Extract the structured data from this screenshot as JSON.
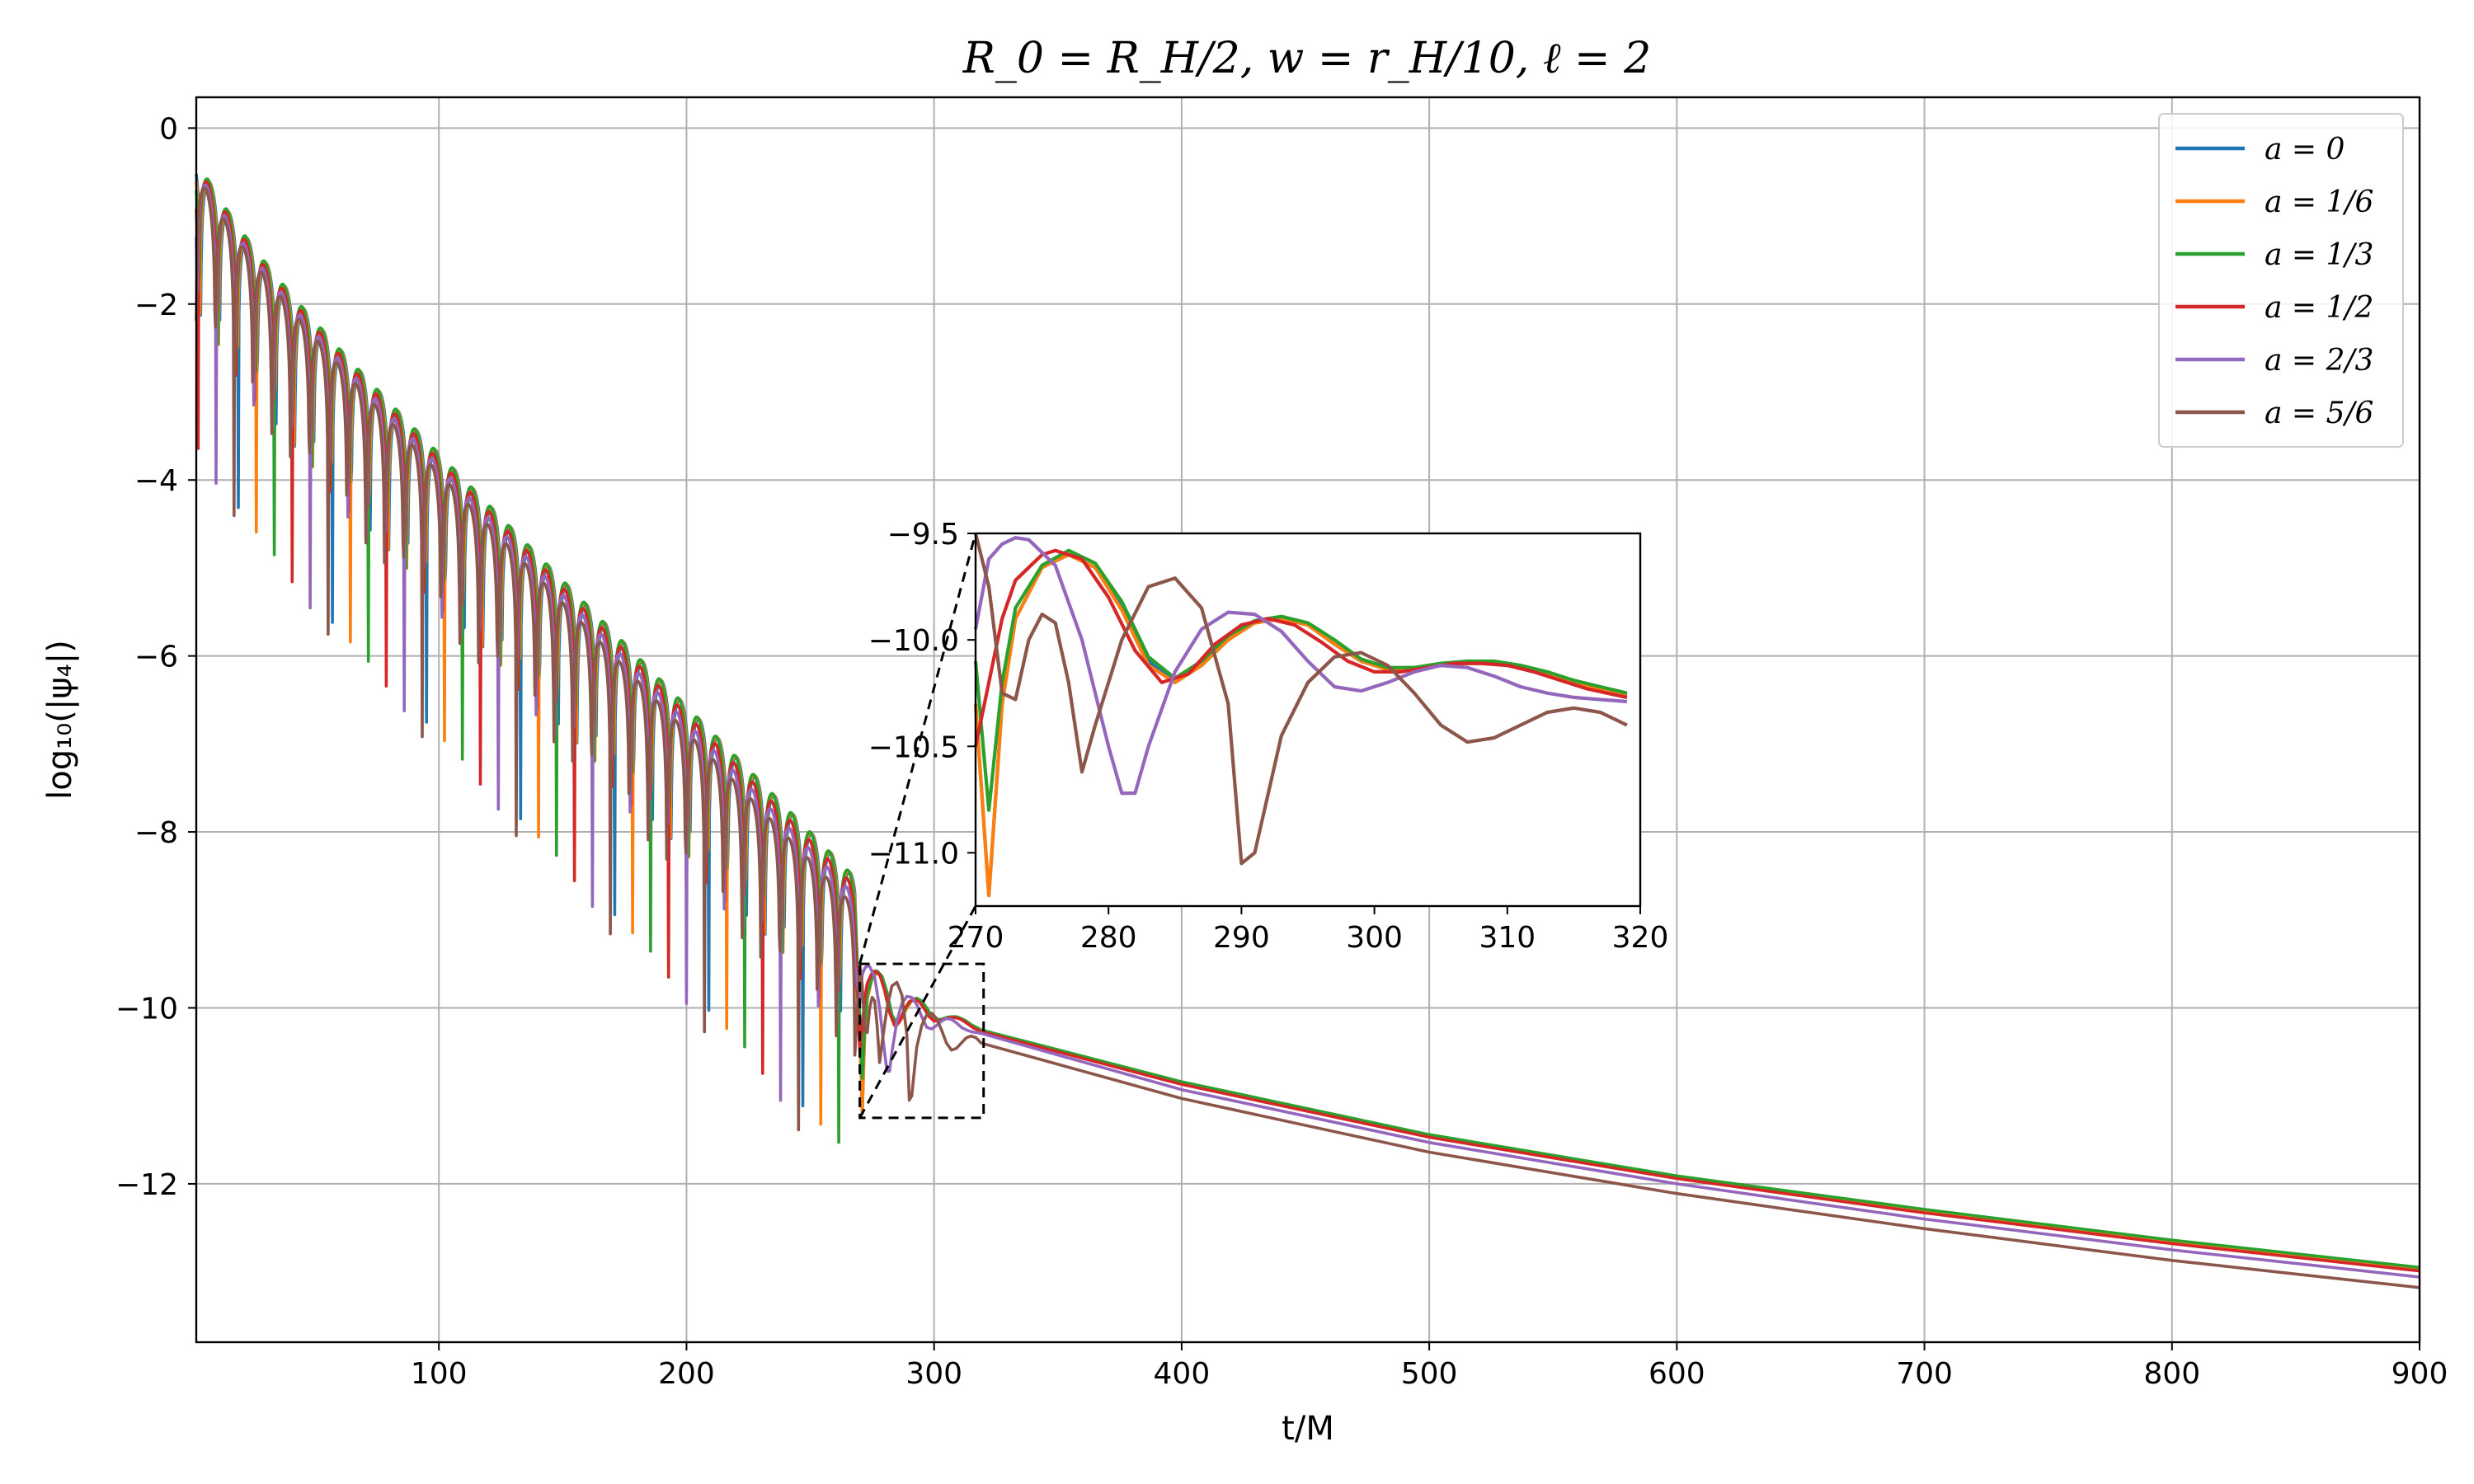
{
  "chart_data": [
    {
      "type": "line",
      "title": "R_0 = R_H/2, w = r_H/10, ℓ = 2",
      "xlabel": "t/M",
      "ylabel": "log₁₀(|ψ₄|)",
      "xlim": [
        2,
        900
      ],
      "ylim": [
        -13.8,
        0.35
      ],
      "xticks": [
        100,
        200,
        300,
        400,
        500,
        600,
        700,
        800,
        900
      ],
      "yticks": [
        0,
        -2,
        -4,
        -6,
        -8,
        -10,
        -12
      ],
      "xtick_labels": [
        "100",
        "200",
        "300",
        "400",
        "500",
        "600",
        "700",
        "800",
        "900"
      ],
      "ytick_labels": [
        "0",
        "−2",
        "−4",
        "−6",
        "−8",
        "−10",
        "−12"
      ],
      "grid": true,
      "legend_position": "top-right",
      "series": [
        {
          "name": "a = 0",
          "color": "#1f77b4",
          "ringdown_slope": -0.0286,
          "ringdown_offset": -0.85,
          "tail": [
            [
              320,
              -10.15
            ],
            [
              400,
              -10.85
            ],
            [
              500,
              -11.45
            ],
            [
              600,
              -11.92
            ],
            [
              700,
              -12.3
            ],
            [
              800,
              -12.65
            ],
            [
              900,
              -12.96
            ]
          ]
        },
        {
          "name": "a = 1/6",
          "color": "#ff7f0e",
          "ringdown_slope": -0.0286,
          "ringdown_offset": -0.85,
          "tail": [
            [
              320,
              -10.15
            ],
            [
              400,
              -10.85
            ],
            [
              500,
              -11.45
            ],
            [
              600,
              -11.92
            ],
            [
              700,
              -12.3
            ],
            [
              800,
              -12.65
            ],
            [
              900,
              -12.96
            ]
          ]
        },
        {
          "name": "a = 1/3",
          "color": "#2ca02c",
          "ringdown_slope": -0.0286,
          "ringdown_offset": -0.85,
          "tail": [
            [
              320,
              -10.14
            ],
            [
              400,
              -10.84
            ],
            [
              500,
              -11.44
            ],
            [
              600,
              -11.91
            ],
            [
              700,
              -12.29
            ],
            [
              800,
              -12.64
            ],
            [
              900,
              -12.95
            ]
          ]
        },
        {
          "name": "a = 1/2",
          "color": "#d62728",
          "ringdown_slope": -0.0288,
          "ringdown_offset": -0.9,
          "tail": [
            [
              320,
              -10.16
            ],
            [
              400,
              -10.87
            ],
            [
              500,
              -11.47
            ],
            [
              600,
              -11.94
            ],
            [
              700,
              -12.33
            ],
            [
              800,
              -12.68
            ],
            [
              900,
              -12.99
            ]
          ]
        },
        {
          "name": "a = 2/3",
          "color": "#9467bd",
          "ringdown_slope": -0.029,
          "ringdown_offset": -0.95,
          "tail": [
            [
              320,
              -10.22
            ],
            [
              400,
              -10.93
            ],
            [
              500,
              -11.53
            ],
            [
              600,
              -12.0
            ],
            [
              700,
              -12.4
            ],
            [
              800,
              -12.75
            ],
            [
              900,
              -13.06
            ]
          ]
        },
        {
          "name": "a = 5/6",
          "color": "#8c564b",
          "ringdown_slope": -0.0293,
          "ringdown_offset": -1.0,
          "tail": [
            [
              320,
              -10.35
            ],
            [
              400,
              -11.03
            ],
            [
              500,
              -11.64
            ],
            [
              600,
              -12.11
            ],
            [
              700,
              -12.51
            ],
            [
              800,
              -12.87
            ],
            [
              900,
              -13.18
            ]
          ]
        }
      ]
    },
    {
      "type": "line",
      "title": "",
      "xlabel": "",
      "ylabel": "",
      "xlim": [
        270,
        320
      ],
      "ylim": [
        -11.25,
        -9.5
      ],
      "xticks": [
        270,
        280,
        290,
        300,
        310,
        320
      ],
      "yticks": [
        -9.5,
        -10.0,
        -10.5,
        -11.0
      ],
      "xtick_labels": [
        "270",
        "280",
        "290",
        "300",
        "310",
        "320"
      ],
      "ytick_labels": [
        "−9.5",
        "−10.0",
        "−10.5",
        "−11.0"
      ],
      "grid": false,
      "zoom_region": {
        "x": [
          270,
          320
        ],
        "y": [
          -11.25,
          -9.5
        ]
      },
      "series": [
        {
          "name": "a = 0",
          "color": "#1f77b4",
          "points": [
            [
              270,
              -10.3
            ],
            [
              271,
              -11.2
            ],
            [
              272,
              -10.3
            ],
            [
              273,
              -9.9
            ],
            [
              275,
              -9.66
            ],
            [
              277,
              -9.6
            ],
            [
              279,
              -9.66
            ],
            [
              281,
              -9.85
            ],
            [
              283,
              -10.1
            ],
            [
              285,
              -10.2
            ],
            [
              287,
              -10.12
            ],
            [
              289,
              -10.0
            ],
            [
              291,
              -9.92
            ],
            [
              293,
              -9.9
            ],
            [
              295,
              -9.93
            ],
            [
              297,
              -10.02
            ],
            [
              299,
              -10.1
            ],
            [
              301,
              -10.14
            ],
            [
              303,
              -10.14
            ],
            [
              305,
              -10.12
            ],
            [
              307,
              -10.11
            ],
            [
              309,
              -10.11
            ],
            [
              311,
              -10.13
            ],
            [
              313,
              -10.16
            ],
            [
              315,
              -10.2
            ],
            [
              317,
              -10.23
            ],
            [
              319,
              -10.26
            ]
          ]
        },
        {
          "name": "a = 1/6",
          "color": "#ff7f0e",
          "points": [
            [
              270,
              -10.3
            ],
            [
              271,
              -11.2
            ],
            [
              272,
              -10.3
            ],
            [
              273,
              -9.9
            ],
            [
              275,
              -9.66
            ],
            [
              277,
              -9.6
            ],
            [
              279,
              -9.66
            ],
            [
              281,
              -9.86
            ],
            [
              283,
              -10.12
            ],
            [
              285,
              -10.2
            ],
            [
              287,
              -10.12
            ],
            [
              289,
              -10.0
            ],
            [
              291,
              -9.92
            ],
            [
              293,
              -9.9
            ],
            [
              295,
              -9.93
            ],
            [
              297,
              -10.02
            ],
            [
              299,
              -10.1
            ],
            [
              301,
              -10.14
            ],
            [
              303,
              -10.14
            ],
            [
              305,
              -10.12
            ],
            [
              307,
              -10.11
            ],
            [
              309,
              -10.11
            ],
            [
              311,
              -10.13
            ],
            [
              313,
              -10.16
            ],
            [
              315,
              -10.2
            ],
            [
              317,
              -10.23
            ],
            [
              319,
              -10.26
            ]
          ]
        },
        {
          "name": "a = 1/3",
          "color": "#2ca02c",
          "points": [
            [
              270,
              -10.1
            ],
            [
              271,
              -10.8
            ],
            [
              272,
              -10.2
            ],
            [
              273,
              -9.85
            ],
            [
              275,
              -9.65
            ],
            [
              277,
              -9.58
            ],
            [
              279,
              -9.64
            ],
            [
              281,
              -9.82
            ],
            [
              283,
              -10.08
            ],
            [
              285,
              -10.18
            ],
            [
              287,
              -10.1
            ],
            [
              289,
              -9.98
            ],
            [
              291,
              -9.91
            ],
            [
              293,
              -9.89
            ],
            [
              295,
              -9.92
            ],
            [
              297,
              -10.0
            ],
            [
              299,
              -10.09
            ],
            [
              301,
              -10.13
            ],
            [
              303,
              -10.13
            ],
            [
              305,
              -10.11
            ],
            [
              307,
              -10.1
            ],
            [
              309,
              -10.1
            ],
            [
              311,
              -10.12
            ],
            [
              313,
              -10.15
            ],
            [
              315,
              -10.19
            ],
            [
              317,
              -10.22
            ],
            [
              319,
              -10.25
            ]
          ]
        },
        {
          "name": "a = 1/2",
          "color": "#d62728",
          "points": [
            [
              270,
              -10.5
            ],
            [
              271,
              -10.2
            ],
            [
              272,
              -9.9
            ],
            [
              273,
              -9.72
            ],
            [
              275,
              -9.6
            ],
            [
              276,
              -9.58
            ],
            [
              278,
              -9.62
            ],
            [
              280,
              -9.8
            ],
            [
              282,
              -10.05
            ],
            [
              284,
              -10.2
            ],
            [
              286,
              -10.16
            ],
            [
              288,
              -10.02
            ],
            [
              290,
              -9.93
            ],
            [
              292,
              -9.9
            ],
            [
              294,
              -9.93
            ],
            [
              296,
              -10.01
            ],
            [
              298,
              -10.1
            ],
            [
              300,
              -10.15
            ],
            [
              302,
              -10.15
            ],
            [
              304,
              -10.13
            ],
            [
              306,
              -10.11
            ],
            [
              308,
              -10.11
            ],
            [
              310,
              -10.12
            ],
            [
              312,
              -10.15
            ],
            [
              314,
              -10.19
            ],
            [
              316,
              -10.23
            ],
            [
              319,
              -10.27
            ]
          ]
        },
        {
          "name": "a = 2/3",
          "color": "#9467bd",
          "points": [
            [
              270,
              -9.95
            ],
            [
              271,
              -9.62
            ],
            [
              272,
              -9.55
            ],
            [
              273,
              -9.52
            ],
            [
              274,
              -9.53
            ],
            [
              276,
              -9.65
            ],
            [
              278,
              -10.0
            ],
            [
              280,
              -10.5
            ],
            [
              281,
              -10.72
            ],
            [
              282,
              -10.72
            ],
            [
              283,
              -10.5
            ],
            [
              285,
              -10.15
            ],
            [
              287,
              -9.95
            ],
            [
              289,
              -9.87
            ],
            [
              291,
              -9.88
            ],
            [
              293,
              -9.96
            ],
            [
              295,
              -10.1
            ],
            [
              297,
              -10.22
            ],
            [
              299,
              -10.24
            ],
            [
              301,
              -10.2
            ],
            [
              303,
              -10.15
            ],
            [
              305,
              -10.12
            ],
            [
              307,
              -10.13
            ],
            [
              309,
              -10.17
            ],
            [
              311,
              -10.22
            ],
            [
              313,
              -10.25
            ],
            [
              315,
              -10.27
            ],
            [
              317,
              -10.28
            ],
            [
              319,
              -10.29
            ]
          ]
        },
        {
          "name": "a = 5/6",
          "color": "#8c564b",
          "points": [
            [
              270,
              -9.5
            ],
            [
              271,
              -9.75
            ],
            [
              272,
              -10.25
            ],
            [
              273,
              -10.28
            ],
            [
              274,
              -10.0
            ],
            [
              275,
              -9.88
            ],
            [
              276,
              -9.92
            ],
            [
              277,
              -10.2
            ],
            [
              278,
              -10.62
            ],
            [
              279,
              -10.4
            ],
            [
              281,
              -10.0
            ],
            [
              283,
              -9.75
            ],
            [
              285,
              -9.71
            ],
            [
              287,
              -9.85
            ],
            [
              289,
              -10.3
            ],
            [
              290,
              -11.05
            ],
            [
              291,
              -11.0
            ],
            [
              293,
              -10.45
            ],
            [
              295,
              -10.2
            ],
            [
              297,
              -10.08
            ],
            [
              299,
              -10.06
            ],
            [
              301,
              -10.12
            ],
            [
              303,
              -10.25
            ],
            [
              305,
              -10.4
            ],
            [
              307,
              -10.48
            ],
            [
              309,
              -10.46
            ],
            [
              311,
              -10.4
            ],
            [
              313,
              -10.34
            ],
            [
              315,
              -10.32
            ],
            [
              317,
              -10.34
            ],
            [
              319,
              -10.4
            ]
          ]
        }
      ]
    }
  ]
}
